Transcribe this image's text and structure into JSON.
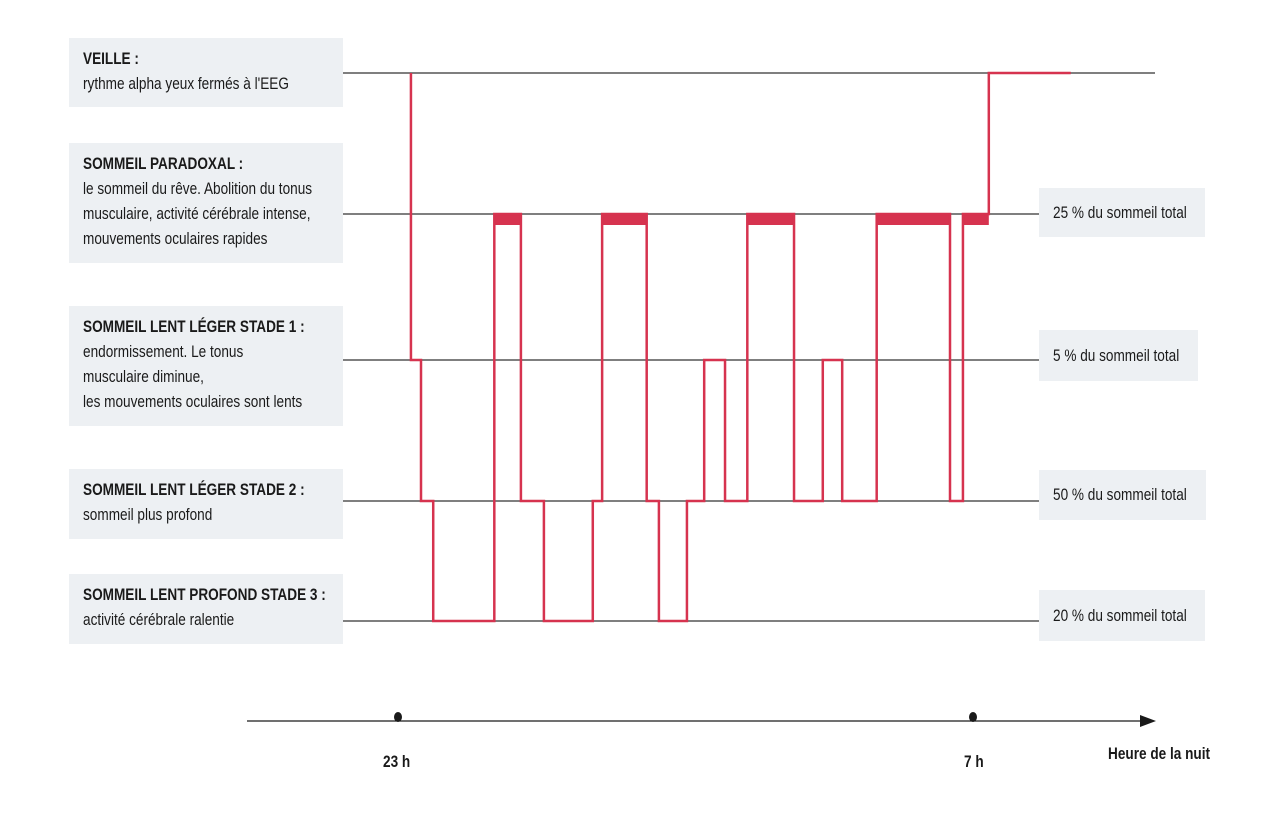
{
  "stages": [
    {
      "title": "VEILLE :",
      "lines": [
        "rythme alpha yeux fermés à l'EEG"
      ],
      "share": ""
    },
    {
      "title": "SOMMEIL PARADOXAL :",
      "lines": [
        "le sommeil du rêve. Abolition du tonus",
        "musculaire, activité cérébrale intense,",
        "mouvements oculaires rapides"
      ],
      "share": "25 % du sommeil total"
    },
    {
      "title": "SOMMEIL LENT LÉGER STADE 1 :",
      "lines": [
        "endormissement. Le tonus",
        "musculaire diminue,",
        "les mouvements oculaires sont lents"
      ],
      "share": "5 % du sommeil total"
    },
    {
      "title": "SOMMEIL LENT LÉGER STADE 2 :",
      "lines": [
        "sommeil plus profond"
      ],
      "share": "50 % du sommeil total"
    },
    {
      "title": "SOMMEIL LENT PROFOND STADE 3 :",
      "lines": [
        "activité cérébrale ralentie"
      ],
      "share": "20 % du sommeil total"
    }
  ],
  "colors": {
    "hypnogram": "#d6334f",
    "box": "#edf0f3",
    "axis": "#1a1a1a"
  },
  "chart_data": {
    "type": "line",
    "subtype": "step",
    "xlabel": "Heure de la nuit",
    "x_ticks": [
      {
        "label": "23 h",
        "value": 0
      },
      {
        "label": "7 h",
        "value": 8
      }
    ],
    "x_unit": "hours since 23 h",
    "y_levels": [
      "Veille",
      "Sommeil paradoxal",
      "Stade 1",
      "Stade 2",
      "Stade 3"
    ],
    "segments": [
      {
        "start": 0.18,
        "end": 0.32,
        "stage": 2
      },
      {
        "start": 0.32,
        "end": 0.49,
        "stage": 3
      },
      {
        "start": 0.49,
        "end": 1.34,
        "stage": 4
      },
      {
        "start": 1.34,
        "end": 1.71,
        "stage": 1
      },
      {
        "start": 1.71,
        "end": 2.03,
        "stage": 3
      },
      {
        "start": 2.03,
        "end": 2.71,
        "stage": 4
      },
      {
        "start": 2.71,
        "end": 2.84,
        "stage": 3
      },
      {
        "start": 2.84,
        "end": 3.46,
        "stage": 1
      },
      {
        "start": 3.46,
        "end": 3.63,
        "stage": 3
      },
      {
        "start": 3.63,
        "end": 4.02,
        "stage": 4
      },
      {
        "start": 4.02,
        "end": 4.26,
        "stage": 3
      },
      {
        "start": 4.26,
        "end": 4.55,
        "stage": 2
      },
      {
        "start": 4.55,
        "end": 4.86,
        "stage": 3
      },
      {
        "start": 4.86,
        "end": 5.51,
        "stage": 1
      },
      {
        "start": 5.51,
        "end": 5.91,
        "stage": 3
      },
      {
        "start": 5.91,
        "end": 6.18,
        "stage": 2
      },
      {
        "start": 6.18,
        "end": 6.66,
        "stage": 3
      },
      {
        "start": 6.66,
        "end": 7.68,
        "stage": 1
      },
      {
        "start": 7.68,
        "end": 7.86,
        "stage": 3
      },
      {
        "start": 7.86,
        "end": 8.22,
        "stage": 1
      },
      {
        "start": 8.22,
        "end": 9.36,
        "stage": 0
      }
    ],
    "start_stage": 0
  }
}
